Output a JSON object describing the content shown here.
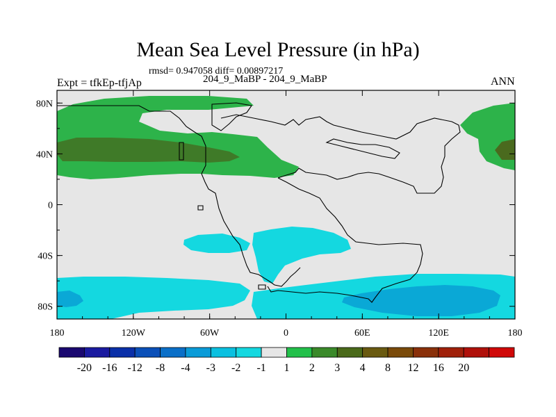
{
  "title": "Mean Sea Level Pressure (in hPa)",
  "stats": "rmsd= 0.947058 diff= 0.00897217",
  "experiment": "Expt = tfkEp-tfjAp",
  "subtitle": "204_9_MaBP - 204_9_MaBP",
  "season": "ANN",
  "colors": {
    "background_neutral": "#e6e6e6",
    "green_light": "#2db34a",
    "green_dark": "#2e8b3c",
    "olive": "#5a6a1e",
    "cyan": "#14d8e0",
    "blue_mid": "#0aa8d6",
    "outline": "#000000"
  },
  "axes": {
    "x_ticks": [
      {
        "value": -180,
        "label": "180"
      },
      {
        "value": -120,
        "label": "120W"
      },
      {
        "value": -60,
        "label": "60W"
      },
      {
        "value": 0,
        "label": "0"
      },
      {
        "value": 60,
        "label": "60E"
      },
      {
        "value": 120,
        "label": "120E"
      },
      {
        "value": 180,
        "label": "180"
      }
    ],
    "y_ticks": [
      {
        "value": 80,
        "label": "80N"
      },
      {
        "value": 40,
        "label": "40N"
      },
      {
        "value": 0,
        "label": "0"
      },
      {
        "value": -40,
        "label": "40S"
      },
      {
        "value": -80,
        "label": "80S"
      }
    ],
    "lon_range": [
      -180,
      180
    ],
    "lat_range": [
      -90,
      90
    ]
  },
  "colorbar": {
    "colors": [
      "#1a0870",
      "#1a1aa0",
      "#0a2fa8",
      "#0a4fb8",
      "#0a6fc8",
      "#0a9bd8",
      "#0ac0e0",
      "#14d8e0",
      "#e6e6e6",
      "#22c04a",
      "#3a8a2a",
      "#4a6a1a",
      "#6a5a10",
      "#7a4a0a",
      "#8a300a",
      "#a0200a",
      "#b0100a",
      "#d00808"
    ],
    "labels": [
      "-20",
      "-16",
      "-12",
      "-8",
      "-4",
      "-3",
      "-2",
      "-1",
      "1",
      "2",
      "3",
      "4",
      "8",
      "12",
      "16",
      "20"
    ]
  }
}
